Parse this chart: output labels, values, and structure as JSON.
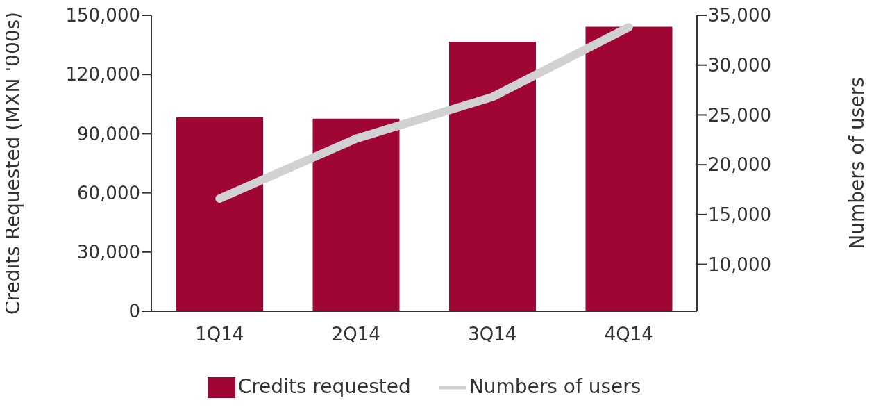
{
  "chart_data": {
    "type": "bar",
    "categories": [
      "1Q14",
      "2Q14",
      "3Q14",
      "4Q14"
    ],
    "series": [
      {
        "name": "Credits requested",
        "color": "#a00634",
        "values": [
          98300,
          97600,
          136600,
          144200
        ]
      },
      {
        "name": "Numbers of users",
        "type": "line",
        "axis": "y2",
        "color": "#d1d1d3",
        "values": [
          16600,
          22600,
          26800,
          33800
        ]
      }
    ],
    "ylabel": "Credits Requested (MXN '000s)",
    "y2label": "Numbers of users",
    "ylim": [
      0,
      150000
    ],
    "yticks": [
      0,
      {
        "value": 30000,
        "label": "30,000"
      },
      {
        "value": 60000,
        "label": "60,000"
      },
      {
        "value": 90000,
        "label": "90,000"
      },
      {
        "value": 120000,
        "label": "120,000"
      },
      {
        "value": 150000,
        "label": "150,000"
      }
    ],
    "y2lim": [
      5300,
      35000
    ],
    "y2ticks": [
      {
        "value": 10000,
        "label": "10,000"
      },
      {
        "value": 15000,
        "label": "15,000"
      },
      {
        "value": 20000,
        "label": "20,000"
      },
      {
        "value": 25000,
        "label": "25,000"
      },
      {
        "value": 30000,
        "label": "30,000"
      },
      {
        "value": 35000,
        "label": "35,000"
      }
    ],
    "legend": "bottom",
    "grid": false
  }
}
